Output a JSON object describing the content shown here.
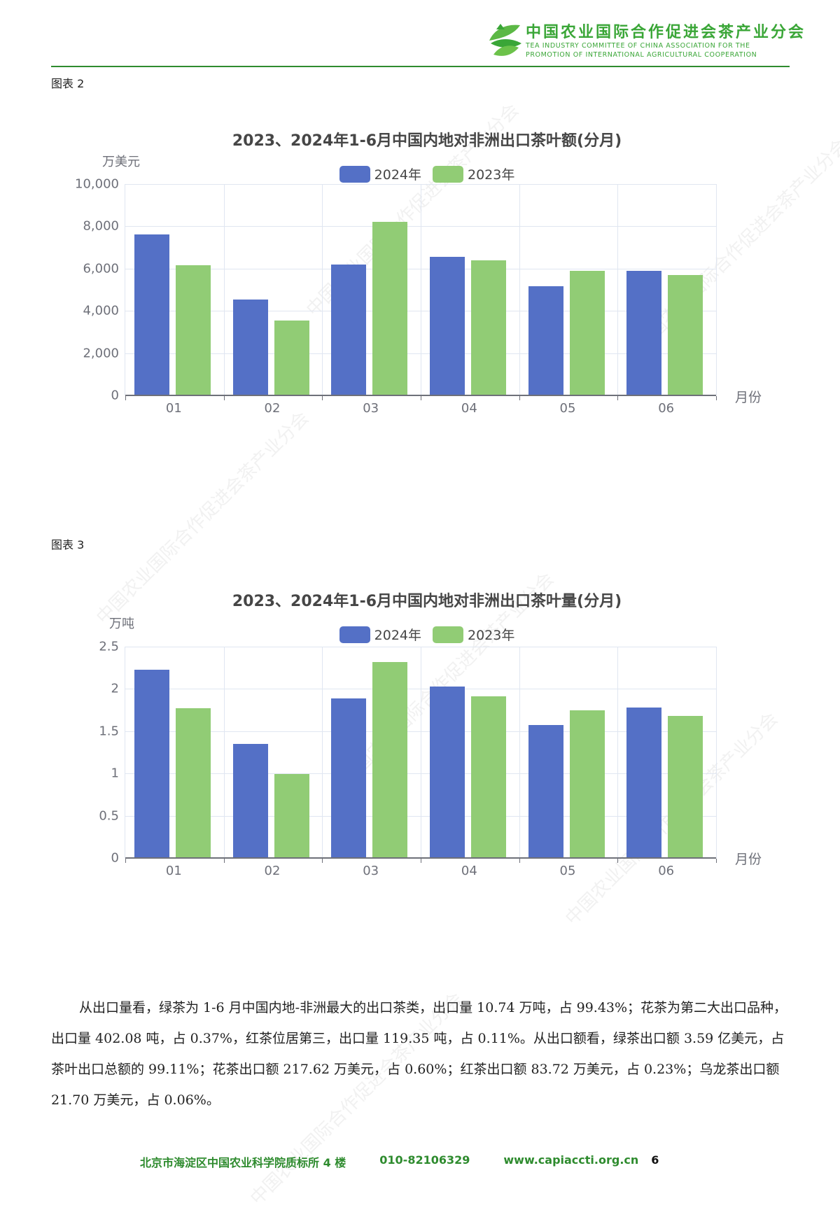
{
  "header": {
    "org_name_cn": "中国农业国际合作促进会茶产业分会",
    "org_name_en_line1": "TEA INDUSTRY COMMITTEE OF CHINA ASSOCIATION FOR THE",
    "org_name_en_line2": "PROMOTION OF INTERNATIONAL AGRICULTURAL COOPERATION",
    "logo_icon": "tea-leaf-logo-icon"
  },
  "watermark": "中国农业国际合作促进会茶产业分会",
  "figures": [
    {
      "label": "图表 2"
    },
    {
      "label": "图表 3"
    }
  ],
  "colors": {
    "series_2024": "#5470c6",
    "series_2023": "#91cc75",
    "brand_green": "#2e8b2e"
  },
  "chart_data": [
    {
      "type": "bar",
      "title": "2023、2024年1-6月中国内地对非洲出口茶叶额(分月)",
      "ylabel": "万美元",
      "xlabel": "月份",
      "categories": [
        "01",
        "02",
        "03",
        "04",
        "05",
        "06"
      ],
      "series": [
        {
          "name": "2024年",
          "values": [
            7600,
            4550,
            6200,
            6550,
            5150,
            5900
          ]
        },
        {
          "name": "2023年",
          "values": [
            6150,
            3550,
            8200,
            6400,
            5900,
            5700
          ]
        }
      ],
      "ylim": [
        0,
        10000
      ],
      "yticks": [
        "0",
        "2,000",
        "4,000",
        "6,000",
        "8,000",
        "10,000"
      ],
      "grid": true,
      "legend_position": "top"
    },
    {
      "type": "bar",
      "title": "2023、2024年1-6月中国内地对非洲出口茶叶量(分月)",
      "ylabel": "万吨",
      "xlabel": "月份",
      "categories": [
        "01",
        "02",
        "03",
        "04",
        "05",
        "06"
      ],
      "series": [
        {
          "name": "2024年",
          "values": [
            2.23,
            1.35,
            1.89,
            2.03,
            1.57,
            1.78
          ]
        },
        {
          "name": "2023年",
          "values": [
            1.77,
            0.99,
            2.32,
            1.91,
            1.75,
            1.68
          ]
        }
      ],
      "ylim": [
        0,
        2.5
      ],
      "yticks": [
        "0",
        "0.5",
        "1",
        "1.5",
        "2",
        "2.5"
      ],
      "grid": true,
      "legend_position": "top"
    }
  ],
  "paragraph": "从出口量看，绿茶为 1-6 月中国内地-非洲最大的出口茶类，出口量 10.74 万吨，占 99.43%；花茶为第二大出口品种，出口量 402.08 吨，占 0.37%，红茶位居第三，出口量 119.35 吨，占 0.11%。从出口额看，绿茶出口额 3.59 亿美元，占茶叶出口总额的 99.11%；花茶出口额 217.62 万美元，占 0.60%；红茶出口额 83.72 万美元，占 0.23%；乌龙茶出口额 21.70 万美元，占 0.06%。",
  "footer": {
    "address": "北京市海淀区中国农业科学院质标所 4 楼",
    "phone": "010-82106329",
    "website": "www.capiaccti.org.cn",
    "page_number": "6"
  }
}
